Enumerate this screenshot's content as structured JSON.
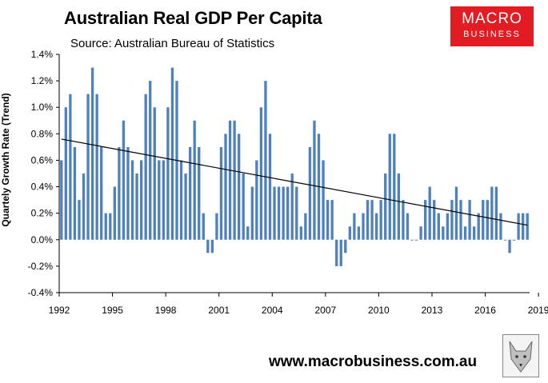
{
  "header": {
    "title": "Australian Real GDP Per Capita",
    "source": "Source: Australian Bureau of Statistics"
  },
  "logo": {
    "line1": "MACRO",
    "line2": "BUSINESS"
  },
  "footer": {
    "website": "www.macrobusiness.com.au"
  },
  "colors": {
    "bar": "#4f81bd",
    "trend": "#000000",
    "logo": "#e31b23"
  },
  "chart_data": {
    "type": "bar",
    "title": "Australian Real GDP Per Capita",
    "xlabel": "",
    "ylabel": "Quartely Growth Rate (Trend)",
    "ylim": [
      -0.4,
      1.4
    ],
    "y_ticks": [
      "1.4%",
      "1.2%",
      "1.0%",
      "0.8%",
      "0.6%",
      "0.4%",
      "0.2%",
      "0.0%",
      "-0.2%",
      "-0.4%"
    ],
    "x_ticks": [
      "1992",
      "1995",
      "1998",
      "2001",
      "2004",
      "2007",
      "2010",
      "2013",
      "2016",
      "2019"
    ],
    "start": "1992Q1",
    "grid": false,
    "legend": "none",
    "values": [
      0.6,
      1.0,
      1.1,
      0.7,
      0.3,
      0.5,
      1.1,
      1.3,
      1.1,
      0.7,
      0.2,
      0.2,
      0.4,
      0.7,
      0.9,
      0.7,
      0.6,
      0.5,
      0.6,
      1.1,
      1.2,
      1.0,
      0.6,
      0.6,
      1.0,
      1.3,
      1.2,
      0.6,
      0.5,
      0.7,
      0.9,
      0.7,
      0.2,
      -0.1,
      -0.1,
      0.2,
      0.7,
      0.8,
      0.9,
      0.9,
      0.8,
      0.5,
      0.1,
      0.4,
      0.6,
      1.0,
      1.2,
      0.8,
      0.4,
      0.4,
      0.4,
      0.4,
      0.5,
      0.4,
      0.1,
      0.2,
      0.7,
      0.9,
      0.8,
      0.6,
      0.3,
      0.3,
      -0.2,
      -0.2,
      -0.1,
      0.1,
      0.2,
      0.1,
      0.2,
      0.3,
      0.3,
      0.2,
      0.3,
      0.5,
      0.8,
      0.8,
      0.5,
      0.3,
      0.2,
      0.0,
      0.0,
      0.1,
      0.3,
      0.4,
      0.3,
      0.2,
      0.1,
      0.2,
      0.3,
      0.4,
      0.3,
      0.1,
      0.3,
      0.1,
      0.2,
      0.3,
      0.3,
      0.4,
      0.4,
      0.2,
      0.0,
      -0.1,
      0.0,
      0.2,
      0.2,
      0.2
    ],
    "trendline": {
      "start": 0.76,
      "end": 0.11
    }
  }
}
